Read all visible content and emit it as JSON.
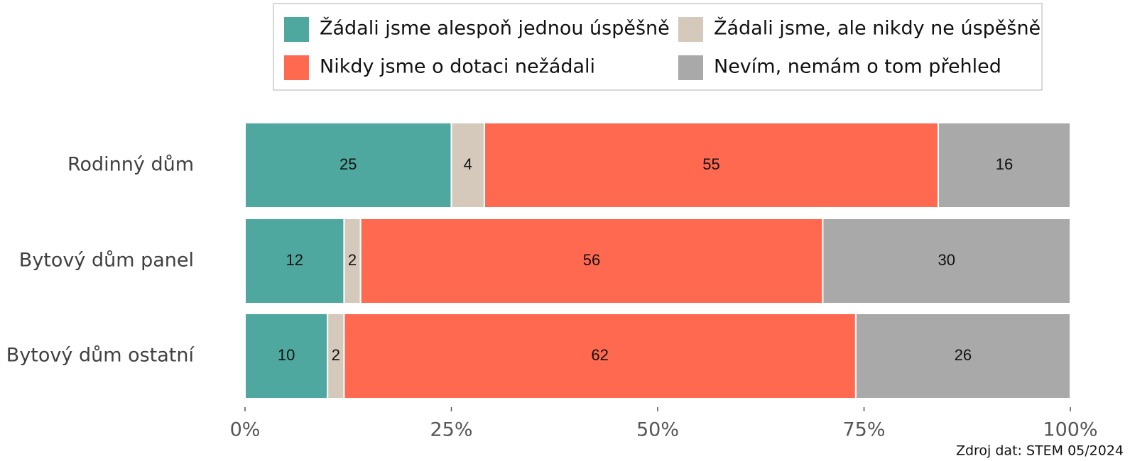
{
  "chart_data": {
    "type": "stacked_barh",
    "categories": [
      "Rodinný dům",
      "Bytový dům panel",
      "Bytový dům ostatní"
    ],
    "series": [
      {
        "name": "Žádali jsme alespoň jednou úspěšně",
        "color": "#4fa8a0",
        "values": [
          25,
          12,
          10
        ]
      },
      {
        "name": "Žádali jsme, ale nikdy ne úspěšně",
        "color": "#d4c9bb",
        "values": [
          4,
          2,
          2
        ]
      },
      {
        "name": "Nikdy jsme o dotaci nežádali",
        "color": "#fe6950",
        "values": [
          55,
          56,
          62
        ]
      },
      {
        "name": "Nevím, nemám o tom přehled",
        "color": "#a9a9a9",
        "values": [
          16,
          30,
          26
        ]
      }
    ],
    "xlim": [
      0,
      100
    ],
    "xticks": [
      {
        "value": 0,
        "label": "0%"
      },
      {
        "value": 25,
        "label": "25%"
      },
      {
        "value": 50,
        "label": "50%"
      },
      {
        "value": 75,
        "label": "75%"
      },
      {
        "value": 100,
        "label": "100%"
      }
    ],
    "legend": "top",
    "source": "Zdroj dat: STEM 05/2024"
  }
}
